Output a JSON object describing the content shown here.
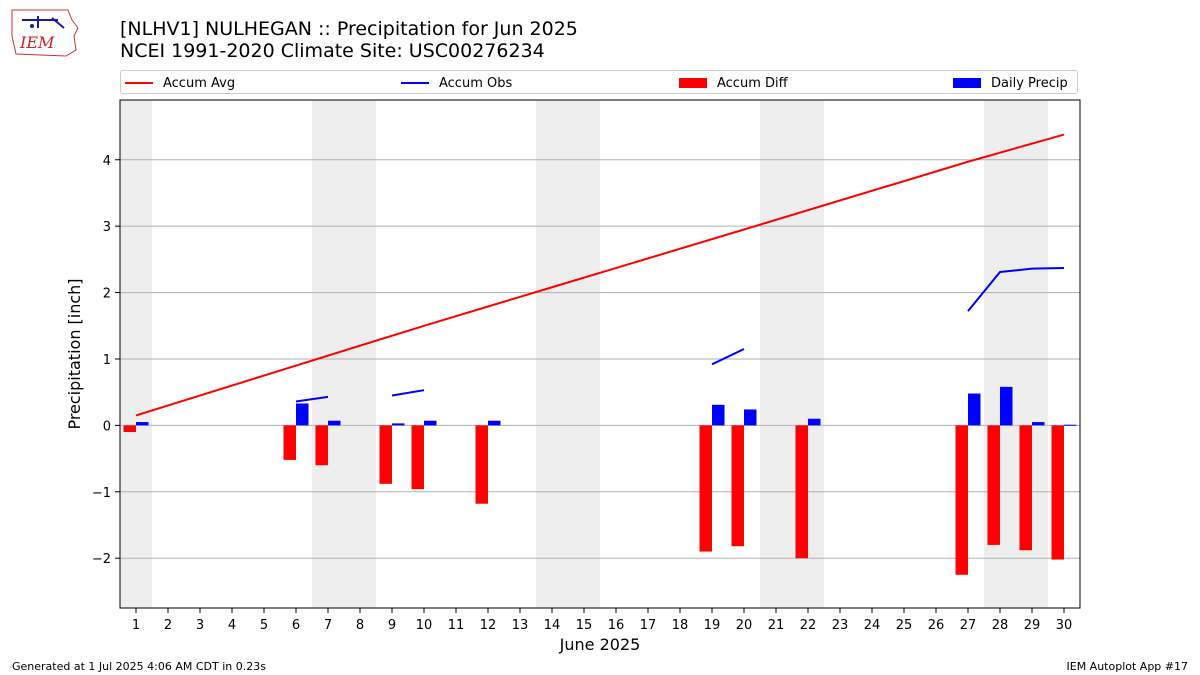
{
  "header": {
    "title_line1": "[NLHV1] NULHEGAN :: Precipitation for Jun 2025",
    "title_line2": "NCEI 1991-2020 Climate Site: USC00276234",
    "logo_text": "IEM"
  },
  "footer": {
    "generated": "Generated at 1 Jul 2025 4:06 AM CDT in 0.23s",
    "app": "IEM Autoplot App #17"
  },
  "legend": {
    "placement": "top, spanning plot width",
    "items": [
      {
        "label": "Accum Avg",
        "kind": "line",
        "color": "#ff0000"
      },
      {
        "label": "Accum Obs",
        "kind": "line",
        "color": "#0000ff"
      },
      {
        "label": "Accum Diff",
        "kind": "bar",
        "color": "#ff0000"
      },
      {
        "label": "Daily Precip",
        "kind": "bar",
        "color": "#0000ff"
      }
    ]
  },
  "chart_data": {
    "type": "bar",
    "xlabel": "June 2025",
    "ylabel": "Precipitation [inch]",
    "ylim": [
      -2.75,
      4.9
    ],
    "xlim": [
      0.5,
      30.5
    ],
    "grid": "horizontal",
    "x_ticks": [
      1,
      2,
      3,
      4,
      5,
      6,
      7,
      8,
      9,
      10,
      11,
      12,
      13,
      14,
      15,
      16,
      17,
      18,
      19,
      20,
      21,
      22,
      23,
      24,
      25,
      26,
      27,
      28,
      29,
      30
    ],
    "y_ticks": [
      -2,
      -1,
      0,
      1,
      2,
      3,
      4
    ],
    "y_tick_labels": [
      "−2",
      "−1",
      "0",
      "1",
      "2",
      "3",
      "4"
    ],
    "weekend_shading": [
      [
        0.5,
        1.5
      ],
      [
        6.5,
        8.5
      ],
      [
        13.5,
        15.5
      ],
      [
        20.5,
        22.5
      ],
      [
        27.5,
        29.5
      ]
    ],
    "shade_color": "#eeeeee",
    "series": [
      {
        "name": "Accum Avg",
        "type": "line",
        "color": "#ff0000",
        "points": [
          [
            1,
            0.15
          ],
          [
            5,
            0.75
          ],
          [
            10,
            1.5
          ],
          [
            14,
            2.08
          ],
          [
            20,
            2.95
          ],
          [
            27,
            3.97
          ],
          [
            30,
            4.38
          ]
        ]
      },
      {
        "name": "Accum Obs",
        "type": "line",
        "color": "#0000ff",
        "segments": [
          [
            [
              6,
              0.36
            ],
            [
              7,
              0.43
            ]
          ],
          [
            [
              9,
              0.45
            ],
            [
              10,
              0.53
            ]
          ],
          [
            [
              19,
              0.92
            ],
            [
              20,
              1.15
            ]
          ],
          [
            [
              27,
              1.72
            ],
            [
              28,
              2.31
            ],
            [
              29,
              2.36
            ],
            [
              30,
              2.37
            ]
          ]
        ]
      },
      {
        "name": "Accum Diff",
        "type": "bar",
        "color": "#ff0000",
        "values": [
          [
            1,
            -0.1
          ],
          [
            6,
            -0.52
          ],
          [
            7,
            -0.6
          ],
          [
            9,
            -0.88
          ],
          [
            10,
            -0.96
          ],
          [
            12,
            -1.18
          ],
          [
            19,
            -1.9
          ],
          [
            20,
            -1.82
          ],
          [
            22,
            -2.0
          ],
          [
            27,
            -2.25
          ],
          [
            28,
            -1.8
          ],
          [
            29,
            -1.88
          ],
          [
            30,
            -2.02
          ]
        ]
      },
      {
        "name": "Daily Precip",
        "type": "bar",
        "color": "#0000ff",
        "values": [
          [
            1,
            0.05
          ],
          [
            6,
            0.33
          ],
          [
            7,
            0.07
          ],
          [
            9,
            0.03
          ],
          [
            10,
            0.07
          ],
          [
            12,
            0.07
          ],
          [
            19,
            0.31
          ],
          [
            20,
            0.24
          ],
          [
            22,
            0.1
          ],
          [
            27,
            0.48
          ],
          [
            28,
            0.58
          ],
          [
            29,
            0.05
          ],
          [
            30,
            0.01
          ]
        ]
      }
    ]
  }
}
